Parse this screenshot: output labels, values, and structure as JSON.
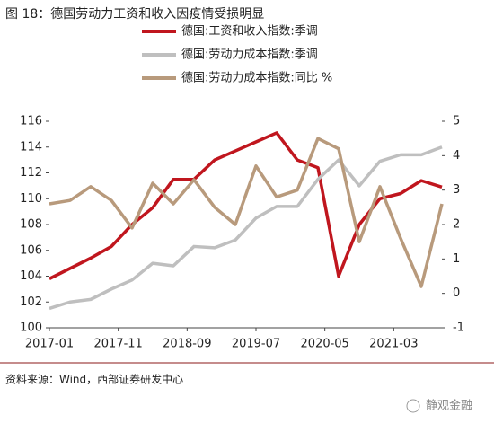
{
  "chart_data": {
    "type": "line",
    "title": "图 18：德国劳动力工资和收入因疫情受损明显",
    "x": [
      "2017-01",
      "2017-04",
      "2017-07",
      "2017-10",
      "2018-01",
      "2018-04",
      "2018-07",
      "2018-10",
      "2019-01",
      "2019-04",
      "2019-07",
      "2019-10",
      "2020-01",
      "2020-04",
      "2020-07",
      "2020-10",
      "2021-01",
      "2021-04",
      "2021-07",
      "2021-10"
    ],
    "xticks": [
      "2017-01",
      "2017-11",
      "2018-09",
      "2019-07",
      "2020-05",
      "2021-03"
    ],
    "ylim": [
      100,
      116
    ],
    "yticks": [
      100,
      102,
      104,
      106,
      108,
      110,
      112,
      114,
      116
    ],
    "y2lim": [
      -1,
      5
    ],
    "y2ticks": [
      -1,
      0,
      1,
      2,
      3,
      4,
      5
    ],
    "series": [
      {
        "name": "德国:工资和收入指数:季调",
        "color": "#c0161e",
        "values": [
          103.8,
          104.6,
          105.4,
          106.3,
          108,
          109.3,
          111.5,
          111.5,
          113,
          113.7,
          114.4,
          115.1,
          113,
          112.4,
          104,
          108,
          110,
          110.4,
          111.4,
          110.9
        ]
      },
      {
        "name": "德国:劳动力成本指数:季调",
        "color": "#bfbfbf",
        "values": [
          101.5,
          102,
          102.2,
          103,
          103.7,
          105,
          104.8,
          106.3,
          106.2,
          106.8,
          108.5,
          109.4,
          109.4,
          111.5,
          113,
          111,
          112.9,
          113.4,
          113.4,
          114
        ]
      },
      {
        "name": "德国:劳动力成本指数:同比 %",
        "color": "#b89a7c",
        "axis": "y2",
        "values": [
          2.6,
          2.7,
          3.1,
          2.7,
          1.9,
          3.2,
          2.6,
          3.3,
          2.5,
          2.0,
          3.7,
          2.8,
          3.0,
          4.5,
          4.2,
          1.5,
          3.1,
          1.6,
          0.2,
          2.6
        ]
      }
    ],
    "source": "资料来源：Wind，西部证券研发中心",
    "watermark": "静观金融"
  }
}
